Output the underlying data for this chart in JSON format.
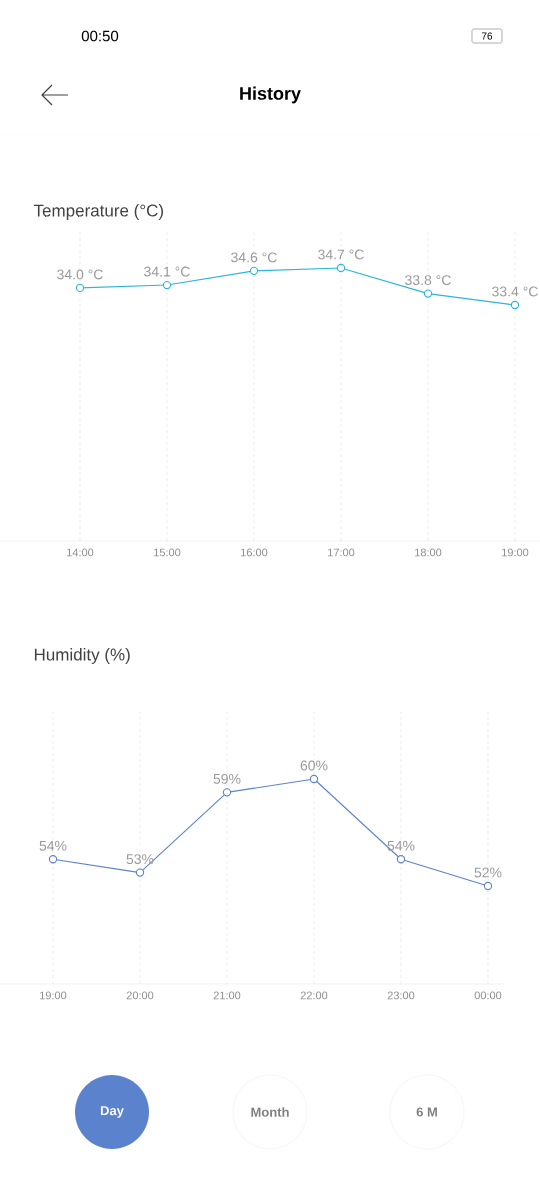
{
  "chart_data": [
    {
      "type": "line",
      "title": "Temperature (°C)",
      "categories": [
        "14:00",
        "15:00",
        "16:00",
        "17:00",
        "18:00",
        "19:00"
      ],
      "values": [
        34.0,
        34.1,
        34.6,
        34.7,
        33.8,
        33.4
      ],
      "value_labels": [
        "34.0 °C",
        "34.1 °C",
        "34.6 °C",
        "34.7 °C",
        "33.8 °C",
        "33.4 °C"
      ],
      "color": "#2bb5d9",
      "marker": "circle",
      "grid": "x",
      "annotations": [
        "00:50",
        "76",
        "History"
      ]
    },
    {
      "type": "line",
      "title": "Humidity (%)",
      "categories": [
        "19:00",
        "20:00",
        "21:00",
        "22:00",
        "23:00",
        "00:00"
      ],
      "values": [
        54,
        53,
        59,
        60,
        54,
        52
      ],
      "value_labels": [
        "54%",
        "53%",
        "59%",
        "60%",
        "54%",
        "52%"
      ],
      "color": "#5b82cc",
      "marker": "circle",
      "grid": "x",
      "annotations": [
        "Day",
        "Month",
        "6 M"
      ]
    }
  ]
}
